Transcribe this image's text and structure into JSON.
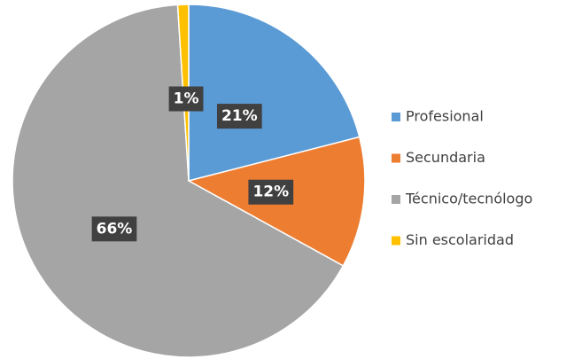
{
  "chart_data": {
    "type": "pie",
    "categories": [
      "Profesional",
      "Secundaria",
      "Técnico/tecnólogo",
      "Sin escolaridad"
    ],
    "values": [
      21,
      12,
      66,
      1
    ],
    "value_labels": [
      "21%",
      "12%",
      "66%",
      "1%"
    ],
    "colors": [
      "#5b9bd5",
      "#ed7d31",
      "#a5a5a5",
      "#ffc000"
    ],
    "legend": "right"
  }
}
